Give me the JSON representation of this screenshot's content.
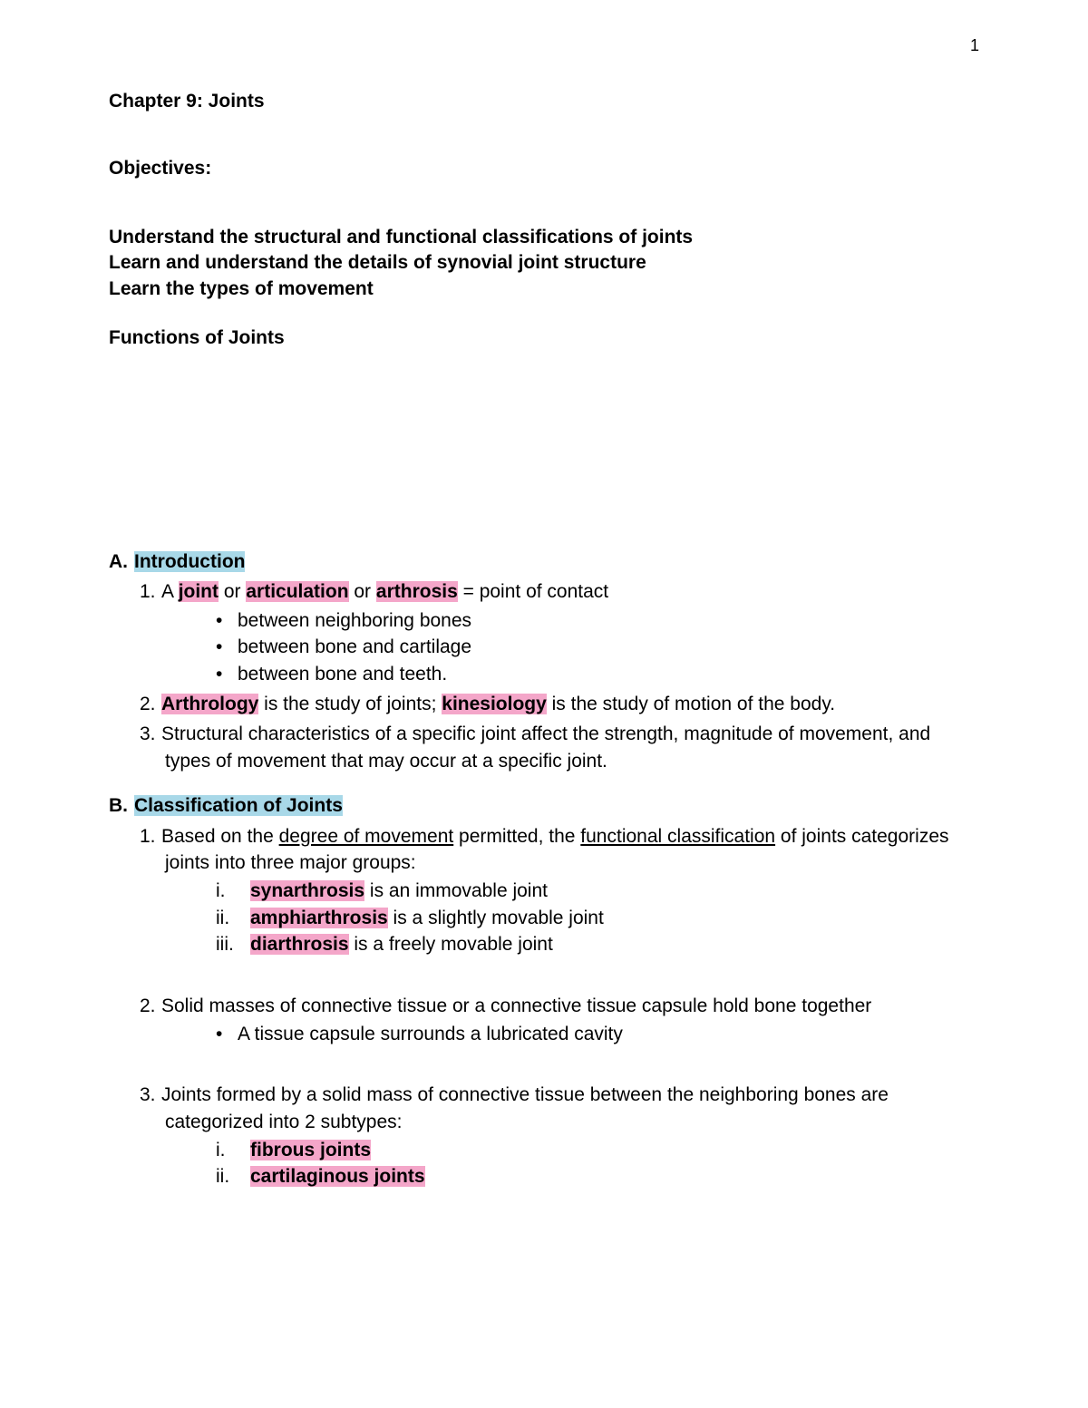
{
  "page_number": "1",
  "colors": {
    "highlight_blue": "#a8d8e8",
    "highlight_pink": "#f4a6c9",
    "text": "#000000",
    "background": "#ffffff"
  },
  "typography": {
    "font_family": "Arial",
    "body_size_pt": 16,
    "line_height": 1.4
  },
  "title": "Chapter 9: Joints",
  "objectives_label": "Objectives:",
  "objectives": [
    "Understand the structural and functional classifications of joints",
    "Learn and understand the details of synovial joint structure",
    "Learn the types of movement"
  ],
  "functions_label": "Functions of Joints",
  "sectionA": {
    "letter": "A.",
    "heading": "Introduction",
    "items": [
      {
        "num": "1.",
        "pre": "A ",
        "term1": "joint",
        "mid1": " or ",
        "term2": "articulation",
        "mid2": " or ",
        "term3": "arthrosis",
        "post": " = point of contact",
        "bullets": [
          "between neighboring bones",
          "between bone and cartilage",
          "between bone and teeth."
        ]
      },
      {
        "num": "2.",
        "term1": "Arthrology",
        "mid1": " is the study of joints; ",
        "term2": "kinesiology",
        "post": " is the study of motion of the body."
      },
      {
        "num": "3.",
        "text": "Structural characteristics of a specific joint affect the strength, magnitude of movement, and types of movement that may occur at a specific joint."
      }
    ]
  },
  "sectionB": {
    "letter": "B.",
    "heading": "Classification of Joints",
    "items": [
      {
        "num": "1.",
        "pre": "Based on the ",
        "u1": "degree of movement",
        "mid1": " permitted, the ",
        "u2": "functional classification",
        "post": " of joints categorizes joints into three major groups:",
        "roman": [
          {
            "rn": "i.",
            "term": "synarthrosis",
            "rest": " is an immovable joint"
          },
          {
            "rn": "ii.",
            "term": "amphiarthrosis",
            "rest": " is a slightly movable joint"
          },
          {
            "rn": "iii.",
            "term": "diarthrosis",
            "rest": " is a freely movable joint"
          }
        ]
      },
      {
        "num": "2.",
        "text": "Solid masses of connective tissue or a connective tissue capsule hold bone together",
        "bullets": [
          "A tissue capsule surrounds a lubricated cavity"
        ]
      },
      {
        "num": "3.",
        "text": "Joints formed by a solid mass of connective tissue between the neighboring bones are categorized into 2 subtypes:",
        "roman": [
          {
            "rn": "i.",
            "term": "fibrous joints",
            "rest": ""
          },
          {
            "rn": "ii.",
            "term": "cartilaginous joints",
            "rest": ""
          }
        ]
      }
    ]
  }
}
